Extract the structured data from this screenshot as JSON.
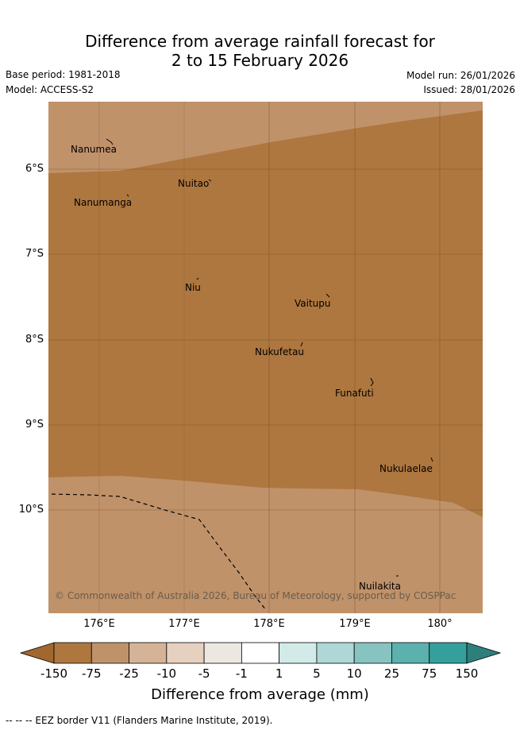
{
  "title_line1": "Difference from average rainfall forecast for",
  "title_line2": "2 to 15 February 2026",
  "base_period": "Base period: 1981-2018",
  "model": "Model: ACCESS-S2",
  "model_run": "Model run: 26/01/2026",
  "issued": "Issued: 28/01/2026",
  "latitude_labels": [
    "6°S",
    "7°S",
    "8°S",
    "9°S",
    "10°S"
  ],
  "longitude_labels": [
    "176°E",
    "177°E",
    "178°E",
    "179°E",
    "180°"
  ],
  "places": [
    "Nanumea",
    "Nuitao",
    "Nanumanga",
    "Niu",
    "Vaitupu",
    "Nukufetau",
    "Funafuti",
    "Nukulaelae",
    "Nuilakita"
  ],
  "copyright": "© Commonwealth of Australia 2026, Bureau of Meteorology, supported by COSPPac",
  "colorbar": {
    "labels": [
      "-150",
      "-75",
      "-25",
      "-10",
      "-5",
      "-1",
      "1",
      "5",
      "10",
      "25",
      "75",
      "150"
    ],
    "colors": [
      "#a0672f",
      "#ae773f",
      "#c0926a",
      "#d5b396",
      "#e6d0bf",
      "#ede7e2",
      "#ffffff",
      "#d3ebe8",
      "#aed8d6",
      "#87c3c1",
      "#5cb0ad",
      "#359f9c",
      "#2e7f7c"
    ],
    "title": "Difference from average (mm)"
  },
  "map_colors": {
    "band_-75_-25": "#c0926a",
    "band_-150_-75": "#ae773f"
  },
  "footnote": "--  --  -- EEZ border V11 (Flanders Marine Institute, 2019)."
}
